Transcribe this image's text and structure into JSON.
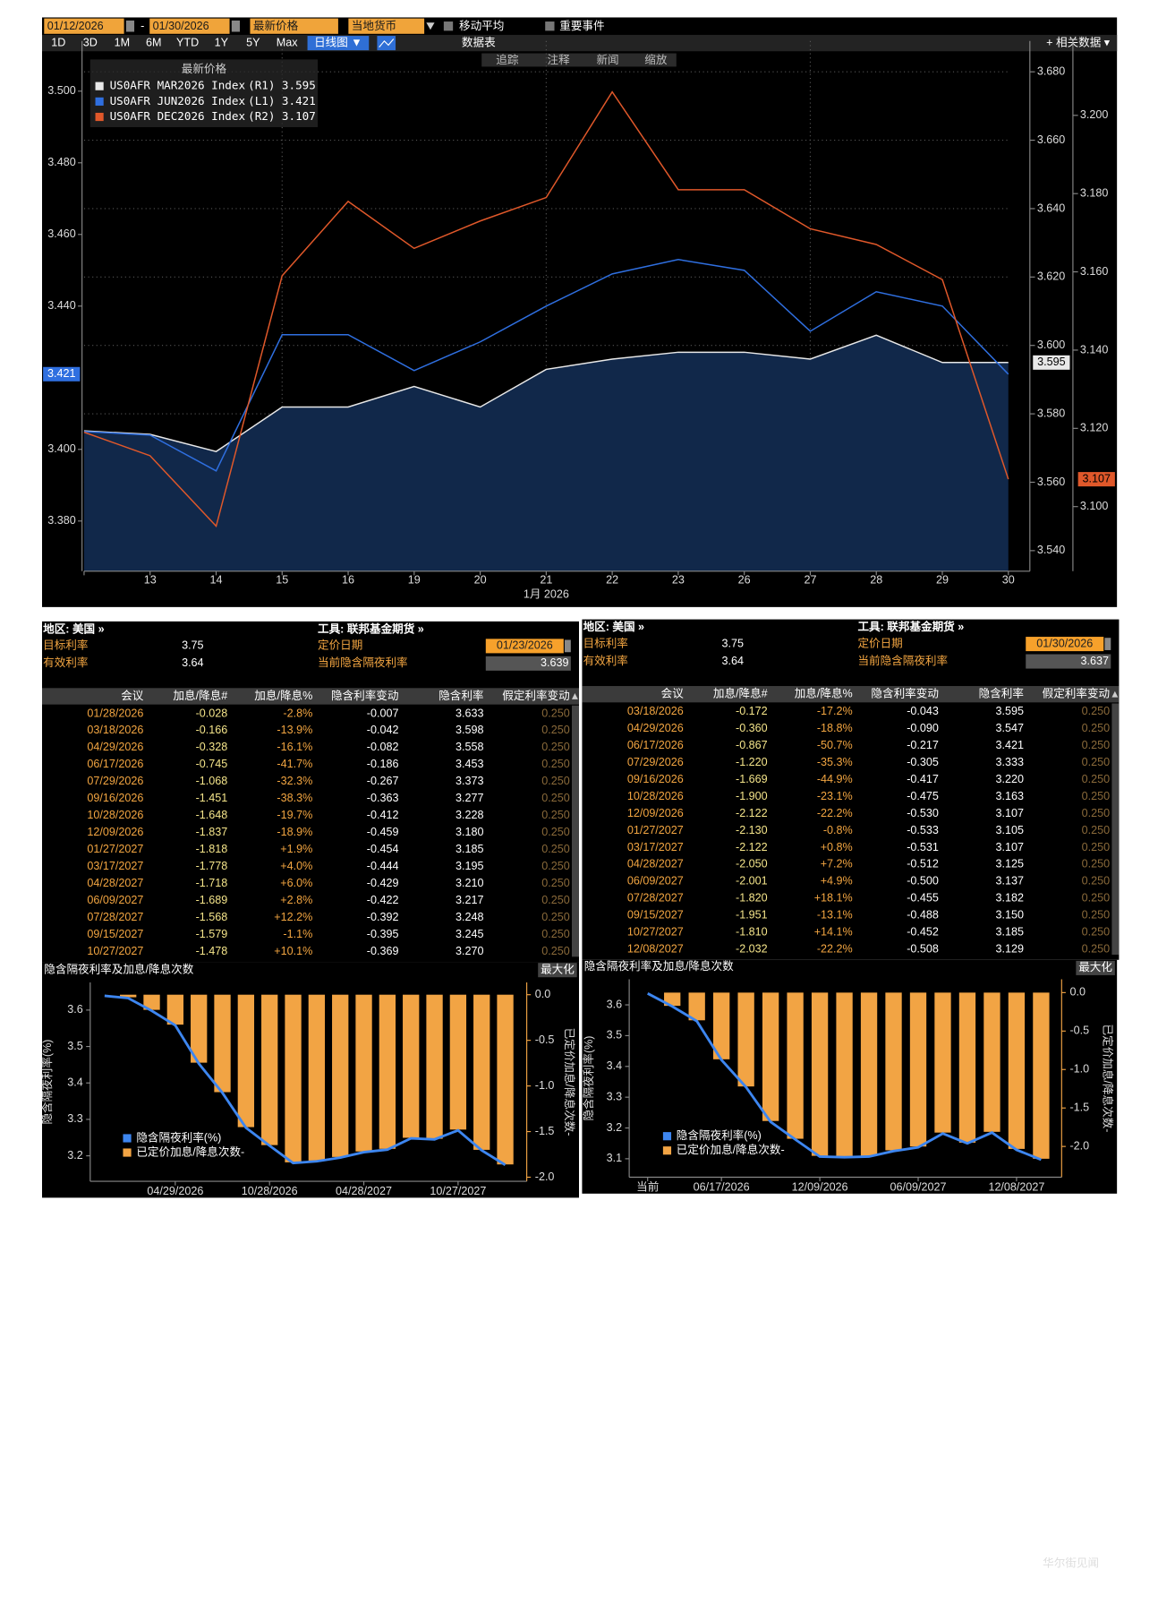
{
  "toolbar": {
    "start_date": "01/12/2026",
    "date_separator": "-",
    "end_date": "01/30/2026",
    "field": "最新价格",
    "currency": "当地货币",
    "moving_average": "移动平均",
    "events": "重要事件",
    "periods": [
      "1D",
      "3D",
      "1M",
      "6M",
      "YTD",
      "1Y",
      "5Y",
      "Max"
    ],
    "chart_type": "日线图 ▼",
    "data_table": "数据表",
    "related_data": "+ 相关数据 ▾",
    "tools": [
      "追踪",
      "注释",
      "新闻",
      "缩放"
    ]
  },
  "chart_data": [
    {
      "type": "line",
      "legend_title": "最新价格",
      "xlabel": "1月 2026",
      "grid": true,
      "categories": [
        null,
        "13",
        "14",
        "15",
        "16",
        "19",
        "20",
        "21",
        "22",
        "23",
        "26",
        "27",
        "28",
        "29",
        "30"
      ],
      "ylim": [
        3.366,
        3.514
      ],
      "yticks": [
        {
          "value": 3.38,
          "label": "3.380"
        },
        {
          "value": 3.4,
          "label": "3.400"
        },
        {
          "value": 3.44,
          "label": "3.440"
        },
        {
          "value": 3.46,
          "label": "3.460"
        },
        {
          "value": 3.48,
          "label": "3.480"
        },
        {
          "value": 3.5,
          "label": "3.500"
        }
      ],
      "y2lim": [
        3.534,
        3.689
      ],
      "y2ticks": [
        {
          "value": 3.54,
          "label": "3.540"
        },
        {
          "value": 3.56,
          "label": "3.560"
        },
        {
          "value": 3.58,
          "label": "3.580"
        },
        {
          "value": 3.6,
          "label": "3.600"
        },
        {
          "value": 3.62,
          "label": "3.620"
        },
        {
          "value": 3.64,
          "label": "3.640"
        },
        {
          "value": 3.66,
          "label": "3.660"
        },
        {
          "value": 3.68,
          "label": "3.680"
        }
      ],
      "y3lim": [
        3.0835,
        3.219
      ],
      "y3ticks": [
        {
          "value": 3.1,
          "label": "3.100"
        },
        {
          "value": 3.12,
          "label": "3.120"
        },
        {
          "value": 3.14,
          "label": "3.140"
        },
        {
          "value": 3.16,
          "label": "3.160"
        },
        {
          "value": 3.18,
          "label": "3.180"
        },
        {
          "value": 3.2,
          "label": "3.200"
        }
      ],
      "series": [
        {
          "name": "US0AFR MAR2026 Index",
          "axis_tag": "(R1)",
          "axis": "y2",
          "color": "#e8e8e8",
          "fill": "#11284a",
          "values": [
            3.575,
            3.574,
            3.569,
            3.582,
            3.582,
            3.588,
            3.582,
            3.593,
            3.596,
            3.598,
            3.598,
            3.596,
            3.603,
            3.595,
            3.595
          ]
        },
        {
          "name": "US0AFR JUN2026 Index",
          "axis_tag": "(L1)",
          "axis": "y",
          "color": "#2f6fe0",
          "values": [
            3.405,
            3.404,
            3.394,
            3.432,
            3.432,
            3.422,
            3.43,
            3.44,
            3.449,
            3.453,
            3.45,
            3.433,
            3.444,
            3.44,
            3.421
          ]
        },
        {
          "name": "US0AFR DEC2026 Index",
          "axis_tag": "(R2)",
          "axis": "y3",
          "color": "#e0582a",
          "values": [
            3.119,
            3.113,
            3.095,
            3.159,
            3.178,
            3.166,
            3.173,
            3.179,
            3.206,
            3.181,
            3.181,
            3.171,
            3.167,
            3.158,
            3.107
          ]
        }
      ]
    },
    {
      "type": "combo",
      "title": "隐含隔夜利率及加息/降息次数",
      "ylabel": "隐含隔夜利率(%)",
      "y2label": "已定价加息/降息次数-",
      "categories": [
        null,
        null,
        null,
        "04/29/2026",
        null,
        null,
        null,
        "10/28/2026",
        null,
        null,
        null,
        "04/28/2027",
        null,
        null,
        null,
        "10/27/2027",
        null,
        null
      ],
      "ylim": [
        3.13,
        3.676
      ],
      "yticks": [
        3.2,
        3.3,
        3.4,
        3.5,
        3.6
      ],
      "y2lim": [
        -2.045,
        0.135
      ],
      "y2ticks": [
        {
          "value": 0,
          "label": "0.0"
        },
        -0.5,
        {
          "value": -1,
          "label": "-1.0"
        },
        -1.5,
        {
          "value": -2,
          "label": "-2.0"
        }
      ],
      "series": [
        {
          "name": "隐含隔夜利率(%)",
          "type": "line",
          "axis": "y",
          "color": "#3d86f0",
          "values": [
            3.639,
            3.633,
            3.598,
            3.558,
            3.453,
            3.373,
            3.277,
            3.228,
            3.18,
            3.185,
            3.195,
            3.21,
            3.217,
            3.248,
            3.245,
            3.27,
            3.215,
            3.175
          ]
        },
        {
          "name": "已定价加息/降息次数-",
          "type": "bar",
          "axis": "y2",
          "color": "#f2a444",
          "values": [
            null,
            -0.028,
            -0.166,
            -0.328,
            -0.745,
            -1.068,
            -1.451,
            -1.648,
            -1.837,
            -1.818,
            -1.778,
            -1.718,
            -1.689,
            -1.568,
            -1.579,
            -1.478,
            -1.7,
            -1.86
          ]
        }
      ]
    },
    {
      "type": "combo",
      "title": "隐含隔夜利率及加息/降息次数",
      "ylabel": "隐含隔夜利率(%)",
      "y2label": "已定价加息/降息次数-",
      "categories": [
        "当前",
        null,
        null,
        "06/17/2026",
        null,
        null,
        null,
        "12/09/2026",
        null,
        null,
        null,
        "06/09/2027",
        null,
        null,
        null,
        "12/08/2027",
        null
      ],
      "ylim": [
        3.04,
        3.683
      ],
      "yticks": [
        3.1,
        3.2,
        3.3,
        3.4,
        3.5,
        3.6
      ],
      "y2lim": [
        -2.4,
        0.173
      ],
      "y2ticks": [
        {
          "value": 0,
          "label": "0.0"
        },
        -0.5,
        {
          "value": -1,
          "label": "-1.0"
        },
        -1.5,
        {
          "value": -2,
          "label": "-2.0"
        }
      ],
      "series": [
        {
          "name": "隐含隔夜利率(%)",
          "type": "line",
          "axis": "y",
          "color": "#3d86f0",
          "values": [
            3.637,
            3.595,
            3.547,
            3.421,
            3.333,
            3.22,
            3.163,
            3.107,
            3.105,
            3.107,
            3.125,
            3.137,
            3.182,
            3.15,
            3.185,
            3.129,
            3.097
          ]
        },
        {
          "name": "已定价加息/降息次数-",
          "type": "bar",
          "axis": "y2",
          "color": "#f2a444",
          "values": [
            null,
            -0.172,
            -0.36,
            -0.867,
            -1.22,
            -1.669,
            -1.9,
            -2.122,
            -2.13,
            -2.122,
            -2.05,
            -2.001,
            -1.82,
            -1.951,
            -1.81,
            -2.032,
            -2.16
          ]
        }
      ]
    }
  ],
  "panels": [
    {
      "region": "地区: 美国 »",
      "instrument": "工具: 联邦基金期货 »",
      "target_rate_label": "目标利率",
      "target_rate": "3.75",
      "effective_rate_label": "有效利率",
      "effective_rate": "3.64",
      "pricing_date_label": "定价日期",
      "pricing_date": "01/23/2026",
      "implied_label": "当前隐含隔夜利率",
      "implied_rate": "3.639",
      "maximize_button": "最大化",
      "columns": [
        "会议",
        "加息/降息#",
        "加息/降息%",
        "隐含利率变动",
        "隐含利率",
        "假定利率变动"
      ],
      "rows": [
        [
          "01/28/2026",
          "-0.028",
          "-2.8%",
          "-0.007",
          "3.633",
          "0.250"
        ],
        [
          "03/18/2026",
          "-0.166",
          "-13.9%",
          "-0.042",
          "3.598",
          "0.250"
        ],
        [
          "04/29/2026",
          "-0.328",
          "-16.1%",
          "-0.082",
          "3.558",
          "0.250"
        ],
        [
          "06/17/2026",
          "-0.745",
          "-41.7%",
          "-0.186",
          "3.453",
          "0.250"
        ],
        [
          "07/29/2026",
          "-1.068",
          "-32.3%",
          "-0.267",
          "3.373",
          "0.250"
        ],
        [
          "09/16/2026",
          "-1.451",
          "-38.3%",
          "-0.363",
          "3.277",
          "0.250"
        ],
        [
          "10/28/2026",
          "-1.648",
          "-19.7%",
          "-0.412",
          "3.228",
          "0.250"
        ],
        [
          "12/09/2026",
          "-1.837",
          "-18.9%",
          "-0.459",
          "3.180",
          "0.250"
        ],
        [
          "01/27/2027",
          "-1.818",
          "+1.9%",
          "-0.454",
          "3.185",
          "0.250"
        ],
        [
          "03/17/2027",
          "-1.778",
          "+4.0%",
          "-0.444",
          "3.195",
          "0.250"
        ],
        [
          "04/28/2027",
          "-1.718",
          "+6.0%",
          "-0.429",
          "3.210",
          "0.250"
        ],
        [
          "06/09/2027",
          "-1.689",
          "+2.8%",
          "-0.422",
          "3.217",
          "0.250"
        ],
        [
          "07/28/2027",
          "-1.568",
          "+12.2%",
          "-0.392",
          "3.248",
          "0.250"
        ],
        [
          "09/15/2027",
          "-1.579",
          "-1.1%",
          "-0.395",
          "3.245",
          "0.250"
        ],
        [
          "10/27/2027",
          "-1.478",
          "+10.1%",
          "-0.369",
          "3.270",
          "0.250"
        ]
      ]
    },
    {
      "region": "地区: 美国 »",
      "instrument": "工具: 联邦基金期货 »",
      "target_rate_label": "目标利率",
      "target_rate": "3.75",
      "effective_rate_label": "有效利率",
      "effective_rate": "3.64",
      "pricing_date_label": "定价日期",
      "pricing_date": "01/30/2026",
      "implied_label": "当前隐含隔夜利率",
      "implied_rate": "3.637",
      "maximize_button": "最大化",
      "columns": [
        "会议",
        "加息/降息#",
        "加息/降息%",
        "隐含利率变动",
        "隐含利率",
        "假定利率变动"
      ],
      "rows": [
        [
          "03/18/2026",
          "-0.172",
          "-17.2%",
          "-0.043",
          "3.595",
          "0.250"
        ],
        [
          "04/29/2026",
          "-0.360",
          "-18.8%",
          "-0.090",
          "3.547",
          "0.250"
        ],
        [
          "06/17/2026",
          "-0.867",
          "-50.7%",
          "-0.217",
          "3.421",
          "0.250"
        ],
        [
          "07/29/2026",
          "-1.220",
          "-35.3%",
          "-0.305",
          "3.333",
          "0.250"
        ],
        [
          "09/16/2026",
          "-1.669",
          "-44.9%",
          "-0.417",
          "3.220",
          "0.250"
        ],
        [
          "10/28/2026",
          "-1.900",
          "-23.1%",
          "-0.475",
          "3.163",
          "0.250"
        ],
        [
          "12/09/2026",
          "-2.122",
          "-22.2%",
          "-0.530",
          "3.107",
          "0.250"
        ],
        [
          "01/27/2027",
          "-2.130",
          "-0.8%",
          "-0.533",
          "3.105",
          "0.250"
        ],
        [
          "03/17/2027",
          "-2.122",
          "+0.8%",
          "-0.531",
          "3.107",
          "0.250"
        ],
        [
          "04/28/2027",
          "-2.050",
          "+7.2%",
          "-0.512",
          "3.125",
          "0.250"
        ],
        [
          "06/09/2027",
          "-2.001",
          "+4.9%",
          "-0.500",
          "3.137",
          "0.250"
        ],
        [
          "07/28/2027",
          "-1.820",
          "+18.1%",
          "-0.455",
          "3.182",
          "0.250"
        ],
        [
          "09/15/2027",
          "-1.951",
          "-13.1%",
          "-0.488",
          "3.150",
          "0.250"
        ],
        [
          "10/27/2027",
          "-1.810",
          "+14.1%",
          "-0.452",
          "3.185",
          "0.250"
        ],
        [
          "12/08/2027",
          "-2.032",
          "-22.2%",
          "-0.508",
          "3.129",
          "0.250"
        ]
      ]
    }
  ],
  "watermark": "华尔街见闻"
}
